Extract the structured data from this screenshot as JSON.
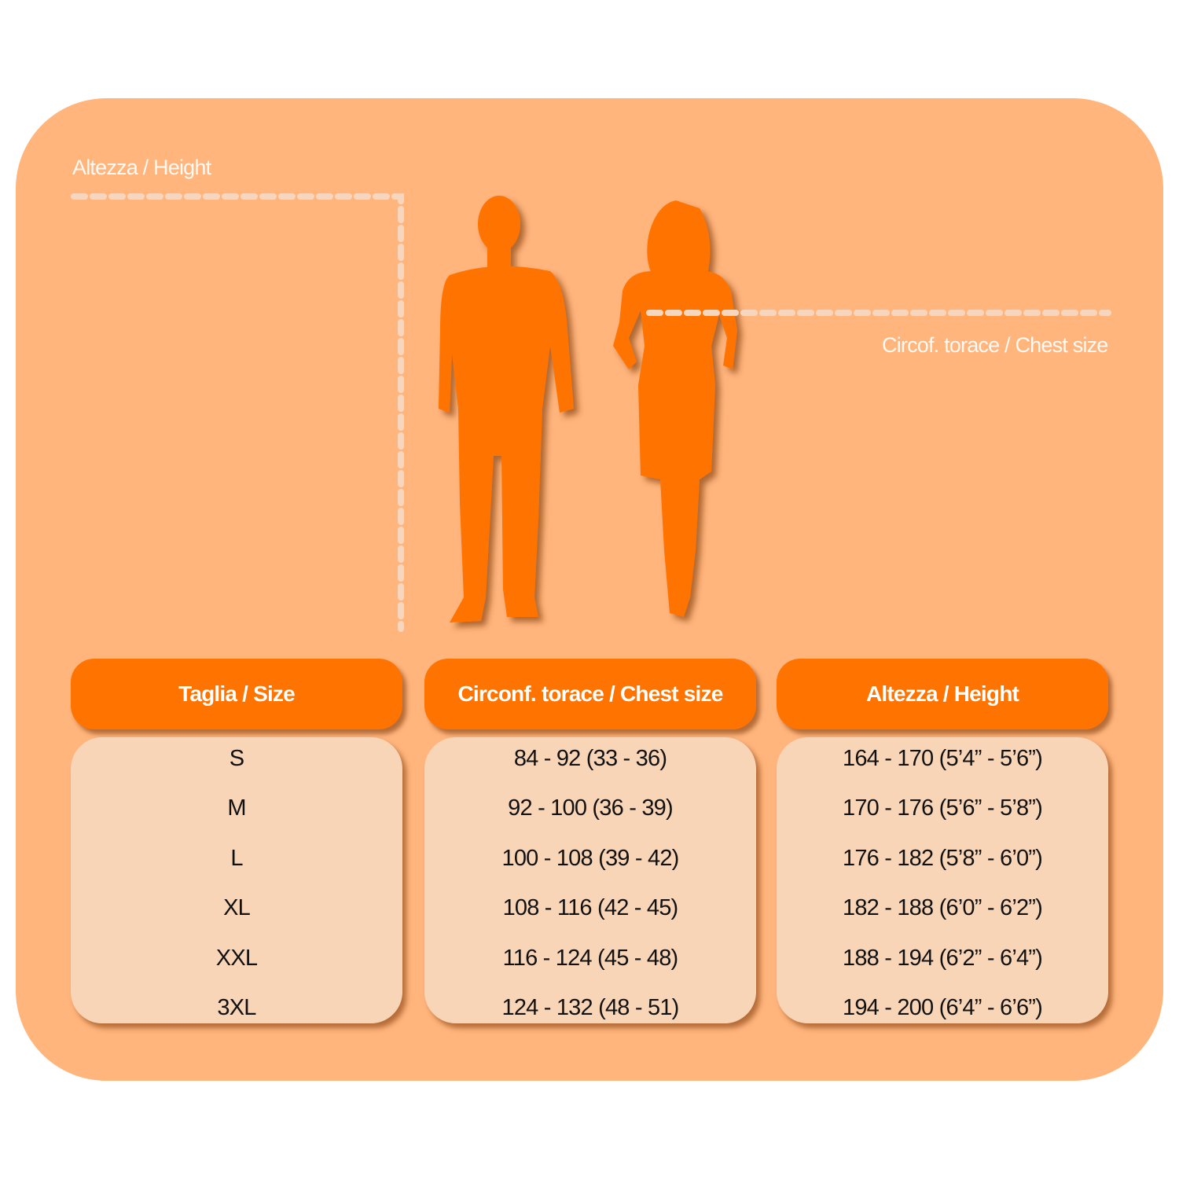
{
  "colors": {
    "panel": "#FFB57C",
    "header": "#FF7300",
    "cell": "#F9D5B8",
    "silhouette": "#FF7300"
  },
  "labels": {
    "height": "Altezza / Height",
    "chest": "Circof. torace / Chest size"
  },
  "icons": [
    "man-silhouette-icon",
    "woman-silhouette-icon"
  ],
  "table": {
    "headers": [
      "Taglia / Size",
      "Circonf. torace / Chest size",
      "Altezza / Height"
    ],
    "sizes": [
      "S",
      "M",
      "L",
      "XL",
      "XXL",
      "3XL"
    ],
    "chest": [
      "84 - 92 (33 - 36)",
      "92 - 100 (36 - 39)",
      "100 - 108 (39 - 42)",
      "108 - 116 (42 - 45)",
      "116 - 124 (45 - 48)",
      "124 - 132 (48 - 51)"
    ],
    "height": [
      "164 - 170 (5’4” - 5’6”)",
      "170 - 176 (5’6” - 5’8”)",
      "176 - 182 (5’8” - 6’0”)",
      "182 - 188 (6’0” - 6’2”)",
      "188 - 194 (6’2” - 6’4”)",
      "194 - 200 (6’4” - 6’6”)"
    ]
  }
}
